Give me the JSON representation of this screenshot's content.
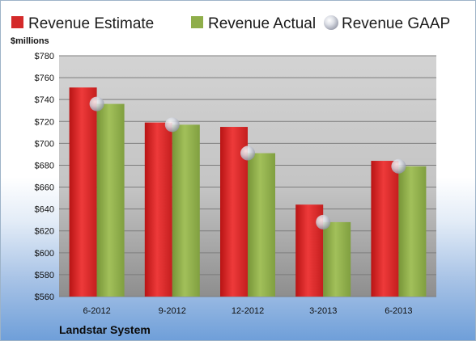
{
  "chart_data": {
    "type": "bar",
    "categories": [
      "6-2012",
      "9-2012",
      "12-2012",
      "3-2013",
      "6-2013"
    ],
    "series": [
      {
        "name": "Revenue Estimate",
        "type": "bar",
        "color": "#d42a2a",
        "values": [
          751,
          719,
          715,
          644,
          684
        ]
      },
      {
        "name": "Revenue Actual",
        "type": "bar",
        "color": "#8fae4a",
        "values": [
          736,
          717,
          691,
          628,
          679
        ]
      },
      {
        "name": "Revenue GAAP",
        "type": "marker",
        "color": "#c8ccd6",
        "values": [
          736,
          717,
          691,
          628,
          679
        ]
      }
    ],
    "ylabel": "$millions",
    "ylim": [
      560,
      780
    ],
    "yticks": [
      560,
      580,
      600,
      620,
      640,
      660,
      680,
      700,
      720,
      740,
      760,
      780
    ],
    "ytick_labels": [
      "$560",
      "$580",
      "$600",
      "$620",
      "$640",
      "$660",
      "$680",
      "$700",
      "$720",
      "$740",
      "$760",
      "$780"
    ],
    "grid": true,
    "legend_position": "top",
    "company": "Landstar System"
  }
}
